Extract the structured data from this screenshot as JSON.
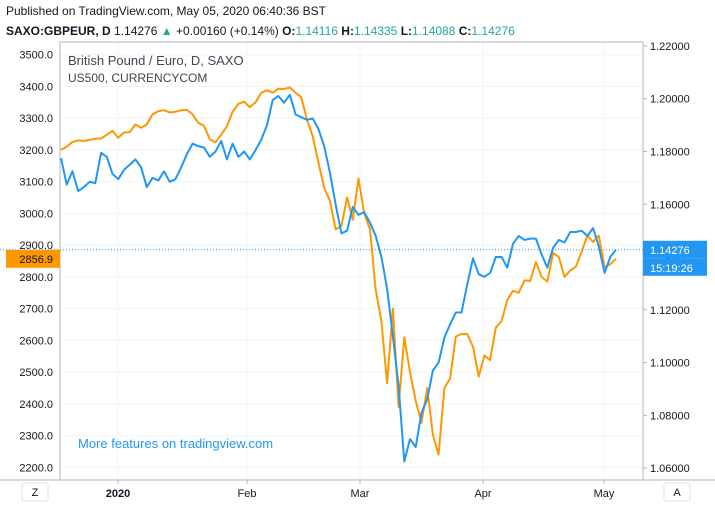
{
  "header": {
    "published": "Published on TradingView.com, May 05, 2020 06:40:36 BST",
    "symbol": "SAXO:GBPEUR, D",
    "last": "1.14276",
    "change_arrow": "▲",
    "change": "+0.00160 (+0.14%)",
    "open_label": "O:",
    "open": "1.14116",
    "high_label": "H:",
    "high": "1.14335",
    "low_label": "L:",
    "low": "1.14088",
    "close_label": "C:",
    "close": "1.14276"
  },
  "legend": {
    "title": "British Pound / Euro, D, SAXO",
    "overlay": "US500, CURRENCYCOM"
  },
  "watermark": "More features on tradingview.com",
  "buttons": {
    "zoom": "Z",
    "auto": "A"
  },
  "colors": {
    "primary": "#2196f3",
    "overlay": "#ff9800",
    "grid": "#f0f3fa",
    "axis": "#b2b5be",
    "text": "#131722"
  },
  "chart_data": {
    "type": "line",
    "x_ticks": [
      "2020",
      "Feb",
      "Mar",
      "Apr",
      "May"
    ],
    "left_axis": {
      "ticks": [
        "3500.0",
        "3400.0",
        "3300.0",
        "3200.0",
        "3100.0",
        "3000.0",
        "2900.0",
        "2800.0",
        "2700.0",
        "2600.0",
        "2500.0",
        "2400.0",
        "2300.0",
        "2200.0"
      ],
      "ylim": [
        2160,
        3540
      ],
      "last_label": "2856.9",
      "last_value": 2856.9
    },
    "right_axis": {
      "ticks": [
        "1.22000",
        "1.20000",
        "1.18000",
        "1.16000",
        "1.14000",
        "1.12000",
        "1.10000",
        "1.08000",
        "1.06000"
      ],
      "ylim": [
        1.0555,
        1.2215
      ],
      "last_label": "1.14276",
      "last_value": 1.14276,
      "countdown": "15:19:26"
    },
    "series": [
      {
        "name": "British Pound / Euro, D, SAXO",
        "axis": "right",
        "values": [
          1.1775,
          1.1675,
          1.1725,
          1.165,
          1.1665,
          1.1685,
          1.168,
          1.1795,
          1.178,
          1.1715,
          1.1695,
          1.173,
          1.175,
          1.177,
          1.174,
          1.1665,
          1.17,
          1.169,
          1.1725,
          1.1685,
          1.1695,
          1.174,
          1.179,
          1.183,
          1.182,
          1.1815,
          1.178,
          1.18,
          1.184,
          1.177,
          1.183,
          1.178,
          1.18,
          1.177,
          1.1805,
          1.1845,
          1.19,
          1.1995,
          1.201,
          1.1985,
          1.2015,
          1.194,
          1.193,
          1.192,
          1.1925,
          1.1885,
          1.182,
          1.172,
          1.16,
          1.149,
          1.15,
          1.159,
          1.156,
          1.157,
          1.153,
          1.148,
          1.14,
          1.128,
          1.11,
          1.091,
          1.0625,
          1.071,
          1.068,
          1.081,
          1.086,
          1.097,
          1.1,
          1.1095,
          1.1145,
          1.119,
          1.119,
          1.1295,
          1.1395,
          1.1335,
          1.1325,
          1.134,
          1.14,
          1.14,
          1.136,
          1.145,
          1.148,
          1.1465,
          1.147,
          1.147,
          1.141,
          1.136,
          1.1435,
          1.1465,
          1.1455,
          1.1495,
          1.1495,
          1.15,
          1.148,
          1.151,
          1.144,
          1.134,
          1.14,
          1.1428
        ]
      },
      {
        "name": "US500, CURRENCYCOM",
        "axis": "left",
        "values": [
          3200,
          3210,
          3225,
          3230,
          3228,
          3232,
          3235,
          3236,
          3248,
          3260,
          3238,
          3255,
          3256,
          3280,
          3270,
          3280,
          3312,
          3322,
          3325,
          3318,
          3320,
          3325,
          3326,
          3312,
          3285,
          3276,
          3233,
          3224,
          3248,
          3274,
          3320,
          3345,
          3352,
          3335,
          3350,
          3380,
          3388,
          3380,
          3393,
          3392,
          3397,
          3380,
          3366,
          3295,
          3242,
          3159,
          3080,
          3040,
          2950,
          2960,
          3050,
          2980,
          3110,
          3000,
          2950,
          2760,
          2660,
          2465,
          2700,
          2390,
          2610,
          2500,
          2410,
          2340,
          2450,
          2302,
          2240,
          2450,
          2480,
          2612,
          2620,
          2620,
          2580,
          2486,
          2552,
          2538,
          2640,
          2661,
          2727,
          2756,
          2750,
          2789,
          2787,
          2847,
          2800,
          2785,
          2875,
          2863,
          2800,
          2820,
          2832,
          2880,
          2930,
          2910,
          2930,
          2830,
          2840,
          2857
        ]
      }
    ],
    "grid": true,
    "legend_position": "top-left"
  }
}
